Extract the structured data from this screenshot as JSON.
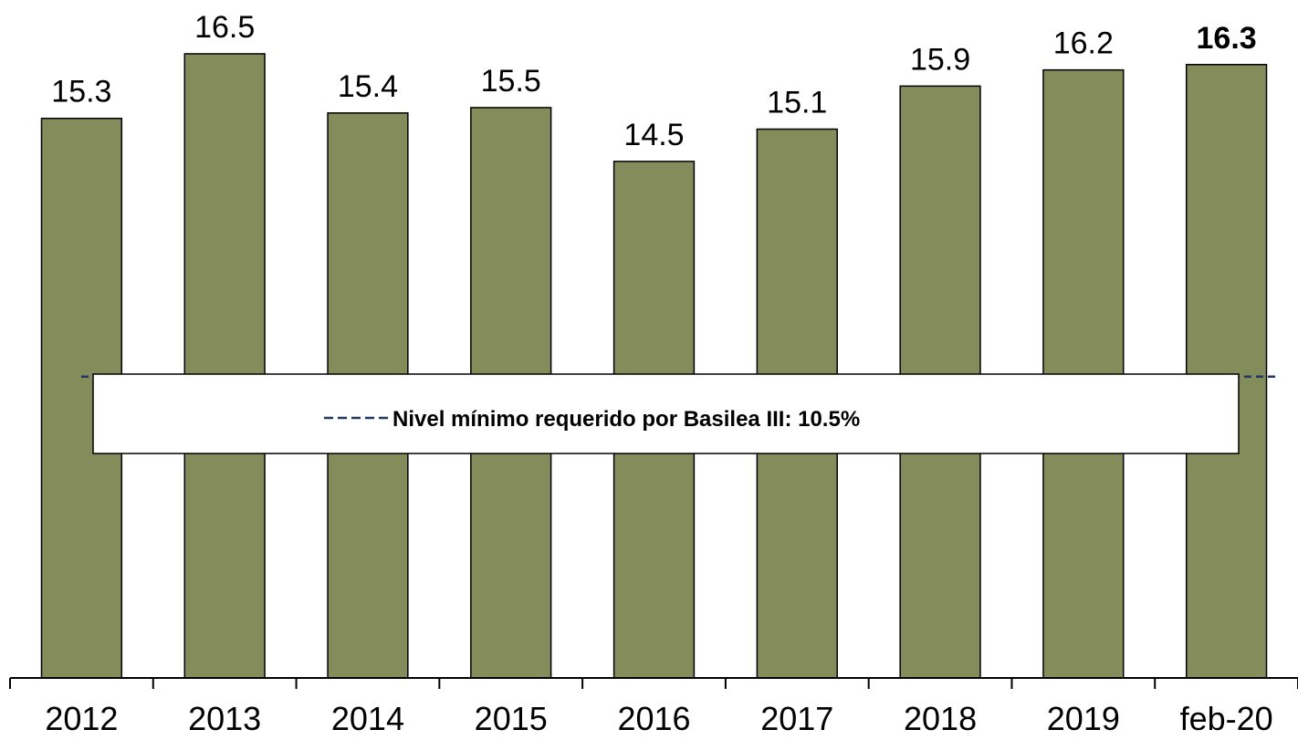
{
  "chart_data": {
    "type": "bar",
    "categories": [
      "2012",
      "2013",
      "2014",
      "2015",
      "2016",
      "2017",
      "2018",
      "2019",
      "feb-20"
    ],
    "values": [
      15.3,
      16.5,
      15.4,
      15.5,
      14.5,
      15.1,
      15.9,
      16.2,
      16.3
    ],
    "color": "#848c5c",
    "ylim": [
      4.9,
      17.5
    ],
    "bold_last_label": true,
    "reference_line": {
      "value": 10.5,
      "name": "Nivel mínimo requerido por Basilea III: 10.5%",
      "color": "#1f3864"
    }
  }
}
